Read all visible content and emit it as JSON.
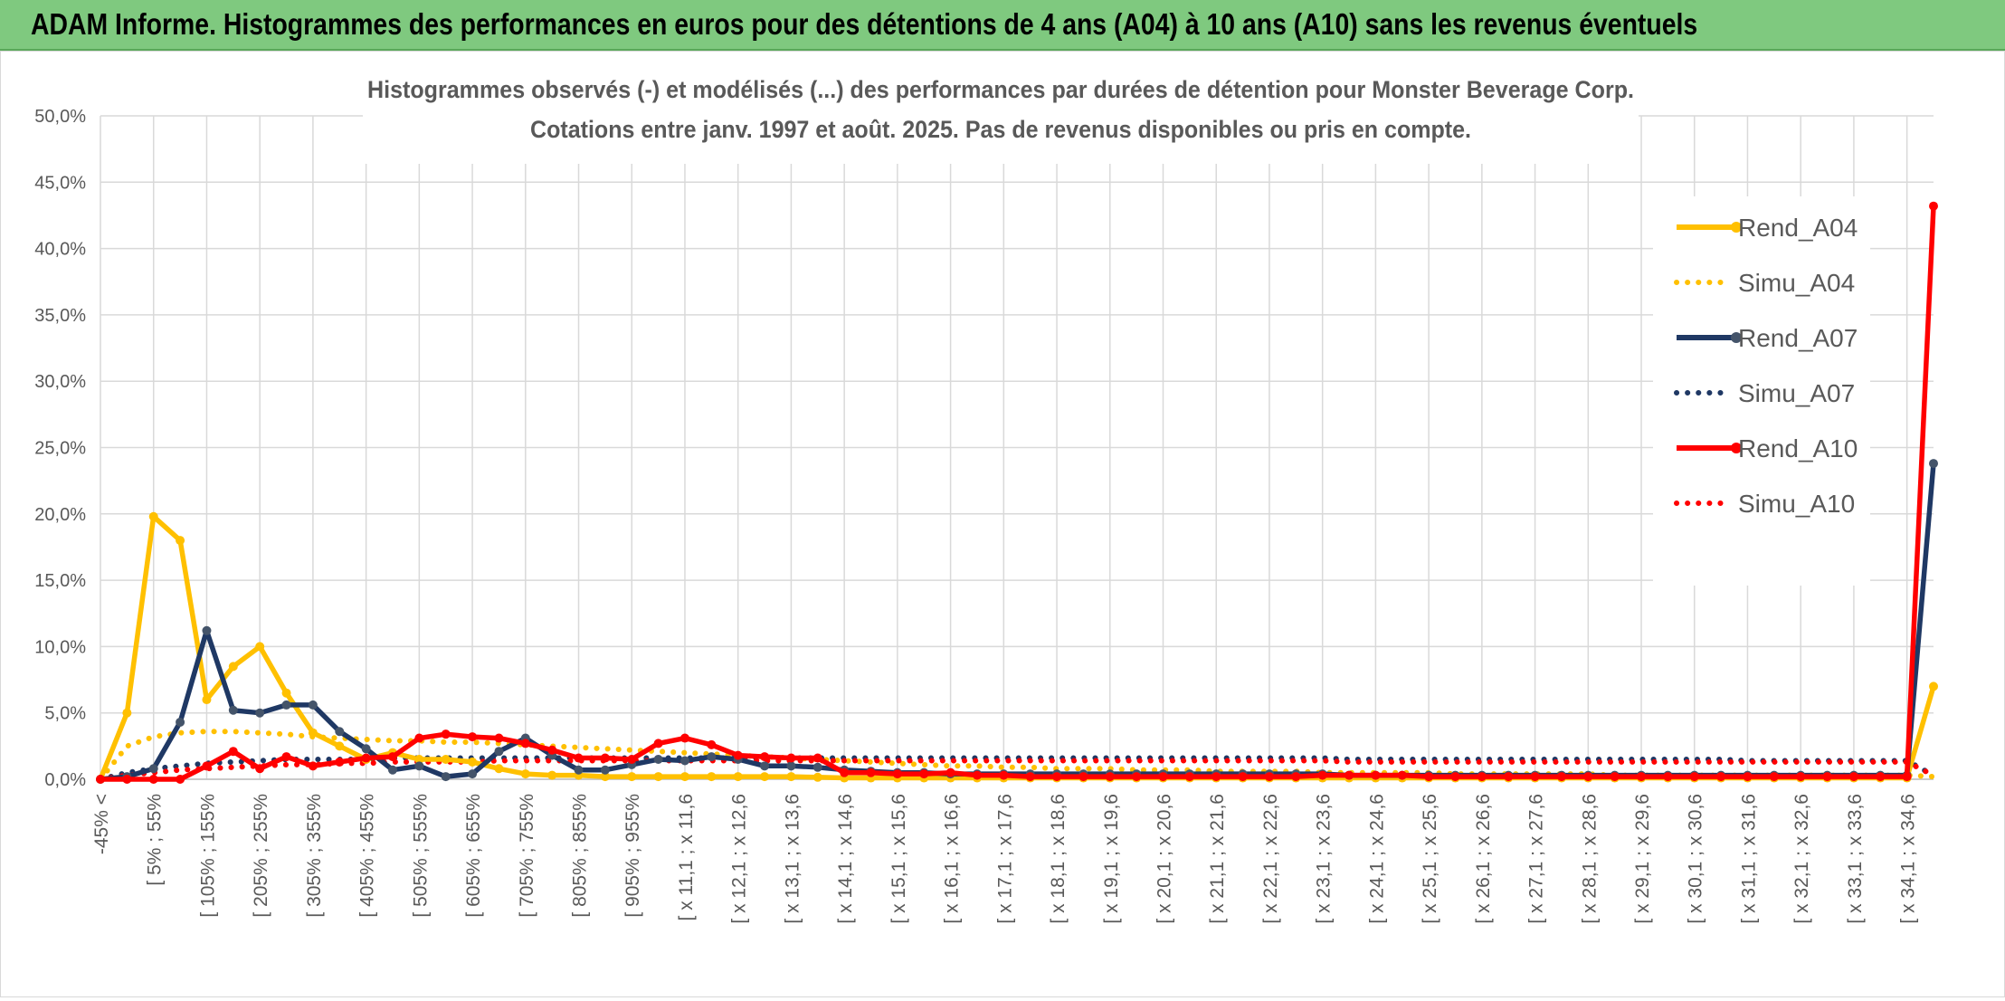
{
  "banner": {
    "title": "ADAM Informe. Histogrammes des performances en euros pour des détentions de 4 ans (A04) à 10 ans (A10) sans les revenus éventuels"
  },
  "chart_data": {
    "type": "line",
    "title": "Histogrammes observés (-) et modélisés (...) des performances par durées de détention pour Monster Beverage Corp.",
    "subtitle": "Cotations entre janv. 1997 et août. 2025. Pas de revenus disponibles ou pris en compte.",
    "ylim": [
      0,
      50
    ],
    "yticks": [
      "0,0%",
      "5,0%",
      "10,0%",
      "15,0%",
      "20,0%",
      "25,0%",
      "30,0%",
      "35,0%",
      "40,0%",
      "45,0%",
      "50,0%"
    ],
    "xticklabels": [
      "-45% <",
      "[ 5% ; 55%",
      "[ 105% ; 155%",
      "[ 205% ; 255%",
      "[ 305% ; 355%",
      "[ 405% ; 455%",
      "[ 505% ; 555%",
      "[ 605% ; 655%",
      "[ 705% ; 755%",
      "[ 805% ; 855%",
      "[ 905% ; 955%",
      "[ x 11,1 ; x 11,6",
      "[ x 12,1 ; x 12,6",
      "[ x 13,1 ; x 13,6",
      "[ x 14,1 ; x 14,6",
      "[ x 15,1 ; x 15,6",
      "[ x 16,1 ; x 16,6",
      "[ x 17,1 ; x 17,6",
      "[ x 18,1 ; x 18,6",
      "[ x 19,1 ; x 19,6",
      "[ x 20,1 ; x 20,6",
      "[ x 21,1 ; x 21,6",
      "[ x 22,1 ; x 22,6",
      "[ x 23,1 ; x 23,6",
      "[ x 24,1 ; x 24,6",
      "[ x 25,1 ; x 25,6",
      "[ x 26,1 ; x 26,6",
      "[ x 27,1 ; x 27,6",
      "[ x 28,1 ; x 28,6",
      "[ x 29,1 ; x 29,6",
      "[ x 30,1 ; x 30,6",
      "[ x 31,1 ; x 31,6",
      "[ x 32,1 ; x 32,6",
      "[ x 33,1 ; x 33,6",
      "[ x 34,1 ; x 34,6"
    ],
    "grid": true,
    "legend_position": "right",
    "series": [
      {
        "name": "Rend_A04",
        "style": "solid",
        "color": "#ffc000",
        "values": [
          0,
          5,
          19.8,
          18,
          6,
          8.5,
          10,
          6.5,
          3.5,
          2.5,
          1.5,
          2,
          1.5,
          1.5,
          1.3,
          0.8,
          0.4,
          0.3,
          0.3,
          0.2,
          0.2,
          0.2,
          0.2,
          0.2,
          0.2,
          0.2,
          0.2,
          0.15,
          0.1,
          0.1,
          0.1,
          0.1,
          0.1,
          0.1,
          0.1,
          0.1,
          0.1,
          0.1,
          0.1,
          0.1,
          0.1,
          0.1,
          0.1,
          0.1,
          0.1,
          0.1,
          0.1,
          0.1,
          0.1,
          0.1,
          0.1,
          0.1,
          0.1,
          0.1,
          0.1,
          0.1,
          0.1,
          0.1,
          0.1,
          0.1,
          0.1,
          0.1,
          0.1,
          0.1,
          0.1,
          0.1,
          0.1,
          0.1,
          0.1,
          7
        ]
      },
      {
        "name": "Simu_A04",
        "style": "dotted",
        "color": "#ffc000",
        "values": [
          0,
          2.5,
          3.2,
          3.5,
          3.6,
          3.6,
          3.5,
          3.4,
          3.2,
          3.1,
          3,
          2.9,
          2.9,
          2.8,
          2.8,
          2.7,
          2.6,
          2.5,
          2.4,
          2.3,
          2.2,
          2.1,
          2,
          1.9,
          1.8,
          1.7,
          1.6,
          1.5,
          1.4,
          1.3,
          1.2,
          1.1,
          1.0,
          1.0,
          0.9,
          0.9,
          0.8,
          0.8,
          0.8,
          0.7,
          0.7,
          0.7,
          0.6,
          0.6,
          0.6,
          0.6,
          0.5,
          0.5,
          0.5,
          0.5,
          0.5,
          0.4,
          0.4,
          0.4,
          0.4,
          0.4,
          0.4,
          0.3,
          0.3,
          0.3,
          0.3,
          0.3,
          0.3,
          0.3,
          0.3,
          0.3,
          0.3,
          0.3,
          0.3,
          0.2
        ]
      },
      {
        "name": "Rend_A07",
        "style": "solid",
        "color": "#1f3864",
        "values": [
          0,
          0.2,
          0.8,
          4.3,
          11.2,
          5.2,
          5,
          5.6,
          5.6,
          3.6,
          2.3,
          0.7,
          1,
          0.2,
          0.4,
          2.1,
          3.1,
          1.8,
          0.7,
          0.7,
          1.1,
          1.5,
          1.4,
          1.7,
          1.5,
          1.0,
          1.0,
          0.9,
          0.7,
          0.6,
          0.5,
          0.5,
          0.4,
          0.4,
          0.4,
          0.4,
          0.4,
          0.4,
          0.4,
          0.4,
          0.4,
          0.4,
          0.4,
          0.4,
          0.4,
          0.4,
          0.4,
          0.3,
          0.3,
          0.3,
          0.3,
          0.3,
          0.3,
          0.3,
          0.3,
          0.3,
          0.3,
          0.3,
          0.3,
          0.3,
          0.3,
          0.3,
          0.3,
          0.3,
          0.3,
          0.3,
          0.3,
          0.3,
          0.3,
          23.8
        ]
      },
      {
        "name": "Simu_A07",
        "style": "dotted",
        "color": "#1f3864",
        "values": [
          0,
          0.5,
          0.8,
          1,
          1.2,
          1.3,
          1.4,
          1.5,
          1.5,
          1.5,
          1.5,
          1.6,
          1.6,
          1.6,
          1.6,
          1.6,
          1.6,
          1.6,
          1.6,
          1.6,
          1.6,
          1.6,
          1.6,
          1.6,
          1.6,
          1.6,
          1.6,
          1.6,
          1.6,
          1.6,
          1.6,
          1.6,
          1.6,
          1.6,
          1.6,
          1.6,
          1.6,
          1.6,
          1.6,
          1.6,
          1.6,
          1.6,
          1.6,
          1.6,
          1.6,
          1.6,
          1.6,
          1.5,
          1.5,
          1.5,
          1.5,
          1.5,
          1.5,
          1.5,
          1.5,
          1.5,
          1.5,
          1.5,
          1.5,
          1.5,
          1.5,
          1.5,
          1.4,
          1.4,
          1.4,
          1.4,
          1.4,
          1.4,
          1.4,
          0.3
        ]
      },
      {
        "name": "Rend_A10",
        "style": "solid",
        "color": "#ff0000",
        "values": [
          0,
          0,
          0,
          0,
          1,
          2.1,
          0.8,
          1.7,
          1,
          1.3,
          1.6,
          1.7,
          3.1,
          3.4,
          3.2,
          3.1,
          2.7,
          2.2,
          1.6,
          1.6,
          1.5,
          2.7,
          3.1,
          2.6,
          1.8,
          1.7,
          1.6,
          1.6,
          0.5,
          0.5,
          0.4,
          0.4,
          0.5,
          0.3,
          0.3,
          0.2,
          0.2,
          0.2,
          0.2,
          0.2,
          0.2,
          0.2,
          0.2,
          0.2,
          0.2,
          0.2,
          0.3,
          0.3,
          0.3,
          0.3,
          0.2,
          0.2,
          0.2,
          0.2,
          0.2,
          0.2,
          0.2,
          0.2,
          0.2,
          0.2,
          0.2,
          0.2,
          0.2,
          0.2,
          0.2,
          0.2,
          0.2,
          0.2,
          0.2,
          43.2
        ]
      },
      {
        "name": "Simu_A10",
        "style": "dotted",
        "color": "#ff0000",
        "values": [
          0,
          0.3,
          0.5,
          0.7,
          0.8,
          0.9,
          1,
          1.1,
          1.1,
          1.2,
          1.2,
          1.3,
          1.3,
          1.3,
          1.3,
          1.4,
          1.4,
          1.4,
          1.4,
          1.4,
          1.4,
          1.4,
          1.4,
          1.4,
          1.4,
          1.4,
          1.4,
          1.4,
          1.4,
          1.4,
          1.4,
          1.4,
          1.4,
          1.4,
          1.4,
          1.4,
          1.4,
          1.4,
          1.4,
          1.4,
          1.4,
          1.4,
          1.4,
          1.4,
          1.4,
          1.4,
          1.4,
          1.3,
          1.3,
          1.3,
          1.3,
          1.3,
          1.3,
          1.3,
          1.3,
          1.3,
          1.3,
          1.3,
          1.3,
          1.3,
          1.3,
          1.3,
          1.3,
          1.3,
          1.3,
          1.3,
          1.3,
          1.3,
          1.3,
          0.3
        ]
      }
    ]
  }
}
